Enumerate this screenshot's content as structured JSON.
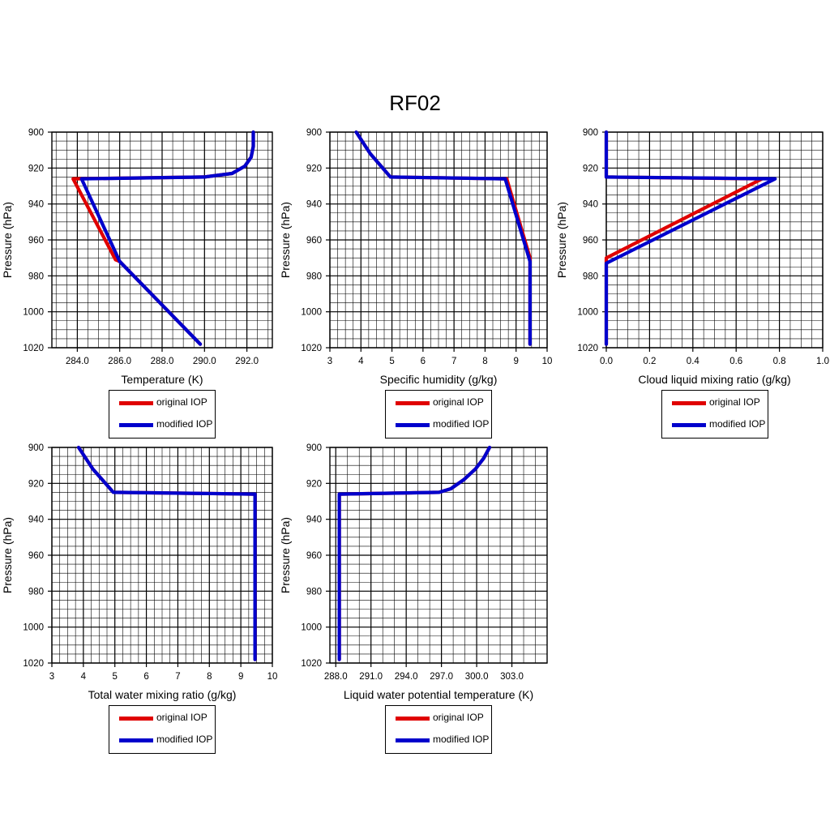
{
  "figure": {
    "title": "RF02"
  },
  "legend": {
    "entries": [
      "original IOP",
      "modified IOP"
    ]
  },
  "colors": {
    "original": "#e00000",
    "modified": "#0000cc"
  },
  "chart_data": [
    {
      "type": "line",
      "xlabel": "Temperature (K)",
      "ylabel": "Pressure (hPa)",
      "xlim": [
        282.8,
        293.2
      ],
      "ylim": [
        1020,
        900
      ],
      "y_inverted": true,
      "xticks": [
        284,
        286,
        288,
        290,
        292
      ],
      "xtick_labels": [
        "284.0",
        "286.0",
        "288.0",
        "290.0",
        "292.0"
      ],
      "xminor": 0.5,
      "yticks": [
        900,
        920,
        940,
        960,
        980,
        1000,
        1020
      ],
      "ytick_labels": [
        "900",
        "920",
        "940",
        "960",
        "980",
        "1000",
        "1020"
      ],
      "yminor": 5,
      "series": [
        {
          "name": "original IOP",
          "x": [
            289.8,
            286.0,
            285.8,
            283.8,
            290.0,
            291.3,
            291.9,
            292.2,
            292.3,
            292.3
          ],
          "y": [
            1018,
            972,
            971,
            926,
            925,
            923,
            919,
            914,
            908,
            900
          ]
        },
        {
          "name": "modified IOP",
          "x": [
            289.8,
            286.0,
            284.2,
            290.0,
            291.3,
            291.9,
            292.2,
            292.3,
            292.3
          ],
          "y": [
            1018,
            972,
            926,
            925,
            923,
            919,
            914,
            908,
            900
          ]
        }
      ]
    },
    {
      "type": "line",
      "xlabel": "Specific humidity (g/kg)",
      "ylabel": "Pressure (hPa)",
      "xlim": [
        3,
        10
      ],
      "ylim": [
        1020,
        900
      ],
      "y_inverted": true,
      "xticks": [
        3,
        4,
        5,
        6,
        7,
        8,
        9,
        10
      ],
      "xtick_labels": [
        "3",
        "4",
        "5",
        "6",
        "7",
        "8",
        "9",
        "10"
      ],
      "xminor": 0.25,
      "yticks": [
        900,
        920,
        940,
        960,
        980,
        1000,
        1020
      ],
      "ytick_labels": [
        "900",
        "920",
        "940",
        "960",
        "980",
        "1000",
        "1020"
      ],
      "yminor": 5,
      "series": [
        {
          "name": "original IOP",
          "x": [
            9.45,
            9.45,
            8.7,
            4.95,
            4.3,
            3.85
          ],
          "y": [
            1018,
            970,
            926,
            925,
            912,
            900
          ]
        },
        {
          "name": "modified IOP",
          "x": [
            9.45,
            9.45,
            8.65,
            4.95,
            4.3,
            3.85
          ],
          "y": [
            1018,
            972,
            926,
            925,
            912,
            900
          ]
        }
      ]
    },
    {
      "type": "line",
      "xlabel": "Cloud liquid mixing ratio (g/kg)",
      "ylabel": "Pressure (hPa)",
      "xlim": [
        0,
        1
      ],
      "ylim": [
        1020,
        900
      ],
      "y_inverted": true,
      "xticks": [
        0,
        0.2,
        0.4,
        0.6,
        0.8,
        1.0
      ],
      "xtick_labels": [
        "0.0",
        "0.2",
        "0.4",
        "0.6",
        "0.8",
        "1.0"
      ],
      "xminor": 0.05,
      "yticks": [
        900,
        920,
        940,
        960,
        980,
        1000,
        1020
      ],
      "ytick_labels": [
        "900",
        "920",
        "940",
        "960",
        "980",
        "1000",
        "1020"
      ],
      "yminor": 5,
      "series": [
        {
          "name": "original IOP",
          "x": [
            0,
            0,
            0.72,
            0,
            0
          ],
          "y": [
            1018,
            970,
            926,
            925,
            900
          ]
        },
        {
          "name": "modified IOP",
          "x": [
            0,
            0,
            0.78,
            0,
            0
          ],
          "y": [
            1018,
            973,
            926,
            925,
            900
          ]
        }
      ]
    },
    {
      "type": "line",
      "xlabel": "Total water mixing ratio (g/kg)",
      "ylabel": "Pressure (hPa)",
      "xlim": [
        3,
        10
      ],
      "ylim": [
        1020,
        900
      ],
      "y_inverted": true,
      "xticks": [
        3,
        4,
        5,
        6,
        7,
        8,
        9,
        10
      ],
      "xtick_labels": [
        "3",
        "4",
        "5",
        "6",
        "7",
        "8",
        "9",
        "10"
      ],
      "xminor": 0.25,
      "yticks": [
        900,
        920,
        940,
        960,
        980,
        1000,
        1020
      ],
      "ytick_labels": [
        "900",
        "920",
        "940",
        "960",
        "980",
        "1000",
        "1020"
      ],
      "yminor": 5,
      "series": [
        {
          "name": "original IOP",
          "x": [
            9.45,
            9.45,
            4.95,
            4.3,
            3.85
          ],
          "y": [
            1018,
            926,
            925,
            912,
            900
          ]
        },
        {
          "name": "modified IOP",
          "x": [
            9.45,
            9.45,
            4.95,
            4.3,
            3.85
          ],
          "y": [
            1018,
            926,
            925,
            912,
            900
          ]
        }
      ]
    },
    {
      "type": "line",
      "xlabel": "Liquid water potential temperature (K)",
      "ylabel": "Pressure (hPa)",
      "xlim": [
        287.5,
        306.0
      ],
      "ylim": [
        1020,
        900
      ],
      "y_inverted": true,
      "xticks": [
        288,
        291,
        294,
        297,
        300,
        303
      ],
      "xtick_labels": [
        "288.0",
        "291.0",
        "294.0",
        "297.0",
        "300.0",
        "303.0"
      ],
      "xminor": 1,
      "yticks": [
        900,
        920,
        940,
        960,
        980,
        1000,
        1020
      ],
      "ytick_labels": [
        "900",
        "920",
        "940",
        "960",
        "980",
        "1000",
        "1020"
      ],
      "yminor": 5,
      "series": [
        {
          "name": "original IOP",
          "x": [
            288.3,
            288.3,
            296.8,
            297.8,
            298.9,
            299.9,
            300.6,
            301.1
          ],
          "y": [
            1018,
            926,
            925,
            923,
            918,
            912,
            906,
            900
          ]
        },
        {
          "name": "modified IOP",
          "x": [
            288.3,
            288.3,
            296.8,
            297.8,
            298.9,
            299.9,
            300.6,
            301.1
          ],
          "y": [
            1018,
            926,
            925,
            923,
            918,
            912,
            906,
            900
          ]
        }
      ]
    }
  ]
}
